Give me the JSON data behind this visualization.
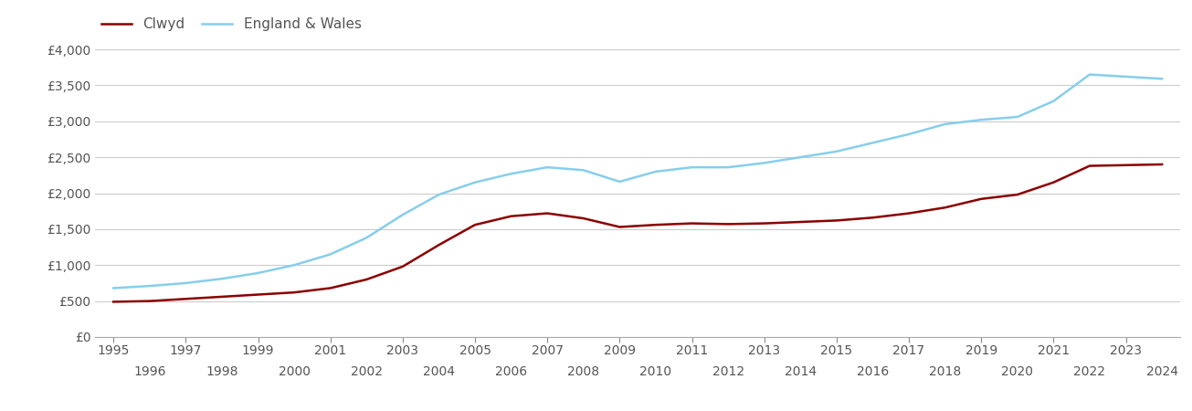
{
  "clwyd_years": [
    1995,
    1996,
    1997,
    1998,
    1999,
    2000,
    2001,
    2002,
    2003,
    2004,
    2005,
    2006,
    2007,
    2008,
    2009,
    2010,
    2011,
    2012,
    2013,
    2014,
    2015,
    2016,
    2017,
    2018,
    2019,
    2020,
    2021,
    2022,
    2023,
    2024
  ],
  "clwyd_values": [
    490,
    500,
    530,
    560,
    590,
    620,
    680,
    800,
    980,
    1280,
    1560,
    1680,
    1720,
    1650,
    1530,
    1560,
    1580,
    1570,
    1580,
    1600,
    1620,
    1660,
    1720,
    1800,
    1920,
    1980,
    2150,
    2380,
    2390,
    2400
  ],
  "ew_years": [
    1995,
    1996,
    1997,
    1998,
    1999,
    2000,
    2001,
    2002,
    2003,
    2004,
    2005,
    2006,
    2007,
    2008,
    2009,
    2010,
    2011,
    2012,
    2013,
    2014,
    2015,
    2016,
    2017,
    2018,
    2019,
    2020,
    2021,
    2022,
    2023,
    2024
  ],
  "ew_values": [
    680,
    710,
    750,
    810,
    890,
    1000,
    1150,
    1380,
    1700,
    1980,
    2150,
    2270,
    2360,
    2320,
    2160,
    2300,
    2360,
    2360,
    2420,
    2500,
    2580,
    2700,
    2820,
    2960,
    3020,
    3060,
    3280,
    3650,
    3620,
    3590
  ],
  "clwyd_color": "#8b0000",
  "ew_color": "#87ceeb",
  "clwyd_label": "Clwyd",
  "ew_label": "England & Wales",
  "ylim": [
    0,
    4000
  ],
  "yticks": [
    0,
    500,
    1000,
    1500,
    2000,
    2500,
    3000,
    3500,
    4000
  ],
  "ytick_labels": [
    "£0",
    "£500",
    "£1,000",
    "£1,500",
    "£2,000",
    "£2,500",
    "£3,000",
    "£3,500",
    "£4,000"
  ],
  "background_color": "#ffffff",
  "grid_color": "#cccccc",
  "line_width": 1.8,
  "legend_fontsize": 11,
  "tick_fontsize": 10,
  "tick_color": "#555555"
}
